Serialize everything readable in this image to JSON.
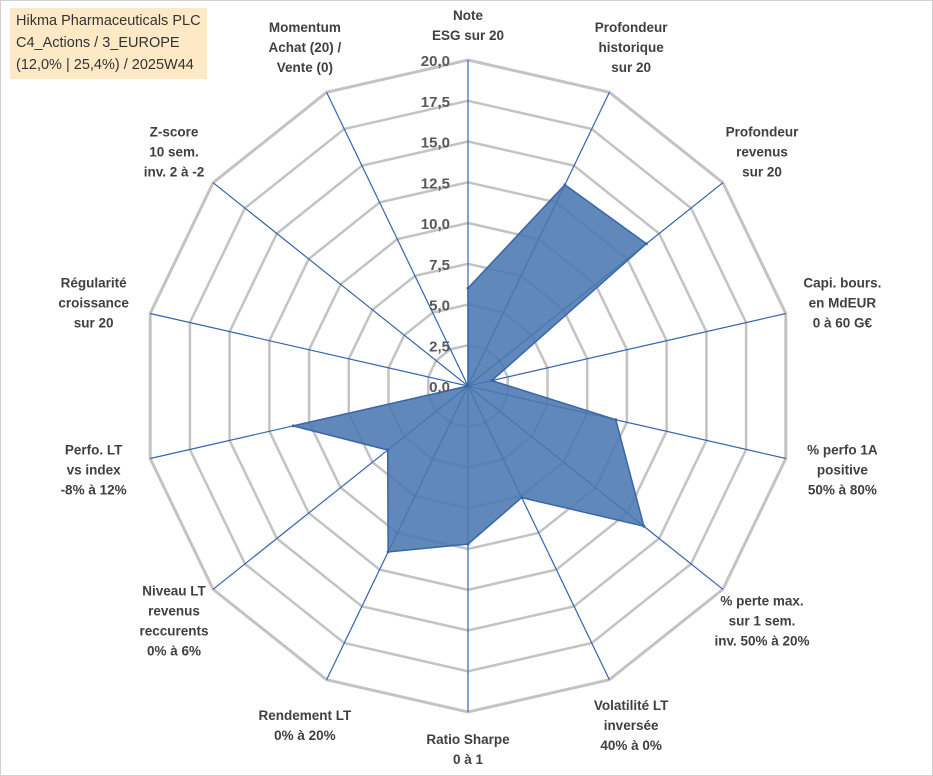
{
  "info": {
    "line1": "Hikma Pharmaceuticals PLC",
    "line2": "C4_Actions / 3_EUROPE",
    "line3": "(12,0% | 25,4%) / 2025W44"
  },
  "colors": {
    "fill": "#4a78b0",
    "stroke": "#3a66a8",
    "spoke": "#3464b0",
    "grid": "#c3c3c3",
    "info_bg": "#fde9c6"
  },
  "chart_data": {
    "type": "radar",
    "title": "",
    "rmin": 0,
    "rmax": 20,
    "ticks": [
      "0,0",
      "2,5",
      "5,0",
      "7,5",
      "10,0",
      "12,5",
      "15,0",
      "17,5",
      "20,0"
    ],
    "tick_values": [
      0,
      2.5,
      5,
      7.5,
      10,
      12.5,
      15,
      17.5,
      20
    ],
    "axes": [
      {
        "label": [
          "Note",
          "ESG sur 20"
        ],
        "value": 6.0
      },
      {
        "label": [
          "Profondeur",
          "historique",
          "sur 20"
        ],
        "value": 13.7
      },
      {
        "label": [
          "Profondeur",
          "revenus",
          "sur 20"
        ],
        "value": 14.0
      },
      {
        "label": [
          "Capi. bours.",
          "en MdEUR",
          "0 à 60 G€"
        ],
        "value": 1.5
      },
      {
        "label": [
          "% perfo 1A",
          "positive",
          "50% à 80%"
        ],
        "value": 9.3
      },
      {
        "label": [
          "% perte max.",
          "sur 1 sem.",
          "inv. 50% à 20%"
        ],
        "value": 13.8
      },
      {
        "label": [
          "Volatilité LT",
          "inversée",
          "40% à 0%"
        ],
        "value": 7.6
      },
      {
        "label": [
          "Ratio Sharpe",
          "0 à 1"
        ],
        "value": 9.7
      },
      {
        "label": [
          "Rendement LT",
          "0% à 20%"
        ],
        "value": 11.3
      },
      {
        "label": [
          "Niveau LT",
          "revenus",
          "reccurents",
          "0% à 6%"
        ],
        "value": 6.3
      },
      {
        "label": [
          "Perfo. LT",
          "vs index",
          "-8% à 12%"
        ],
        "value": 11.0
      },
      {
        "label": [
          "Régularité",
          "croissance",
          "sur 20"
        ],
        "value": 0.0
      },
      {
        "label": [
          "Z-score",
          "10 sem.",
          "inv. 2 à -2"
        ],
        "value": 0.0
      },
      {
        "label": [
          "Momentum",
          "Achat (20) /",
          "Vente (0)"
        ],
        "value": 0.0
      }
    ]
  }
}
